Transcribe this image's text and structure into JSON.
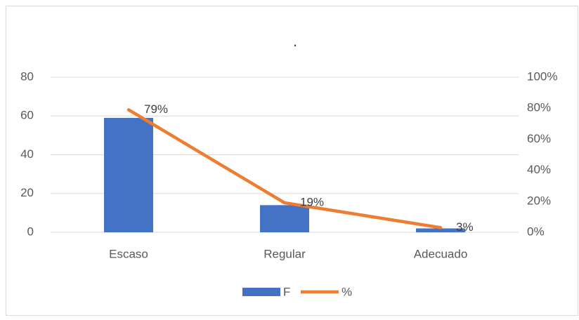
{
  "chart_data": {
    "type": "bar",
    "title": ".",
    "categories": [
      "Escaso",
      "Regular",
      "Adecuado"
    ],
    "series": [
      {
        "name": "F",
        "type": "bar",
        "color": "#4472c4",
        "values": [
          59,
          14,
          2
        ]
      },
      {
        "name": "%",
        "type": "line",
        "axis": "y2",
        "color": "#ed7d31",
        "values": [
          79,
          19,
          3
        ],
        "value_labels": [
          "79%",
          "19%",
          "3%"
        ]
      }
    ],
    "ylim": [
      0,
      80
    ],
    "yticks": [
      0,
      20,
      40,
      60,
      80
    ],
    "y2lim": [
      0,
      100
    ],
    "y2ticks": [
      {
        "value": 0,
        "label": "0%"
      },
      {
        "value": 20,
        "label": "20%"
      },
      {
        "value": 40,
        "label": "40%"
      },
      {
        "value": 60,
        "label": "60%"
      },
      {
        "value": 80,
        "label": "80%"
      },
      {
        "value": 100,
        "label": "100%"
      }
    ],
    "grid": true,
    "legend": "bottom"
  }
}
